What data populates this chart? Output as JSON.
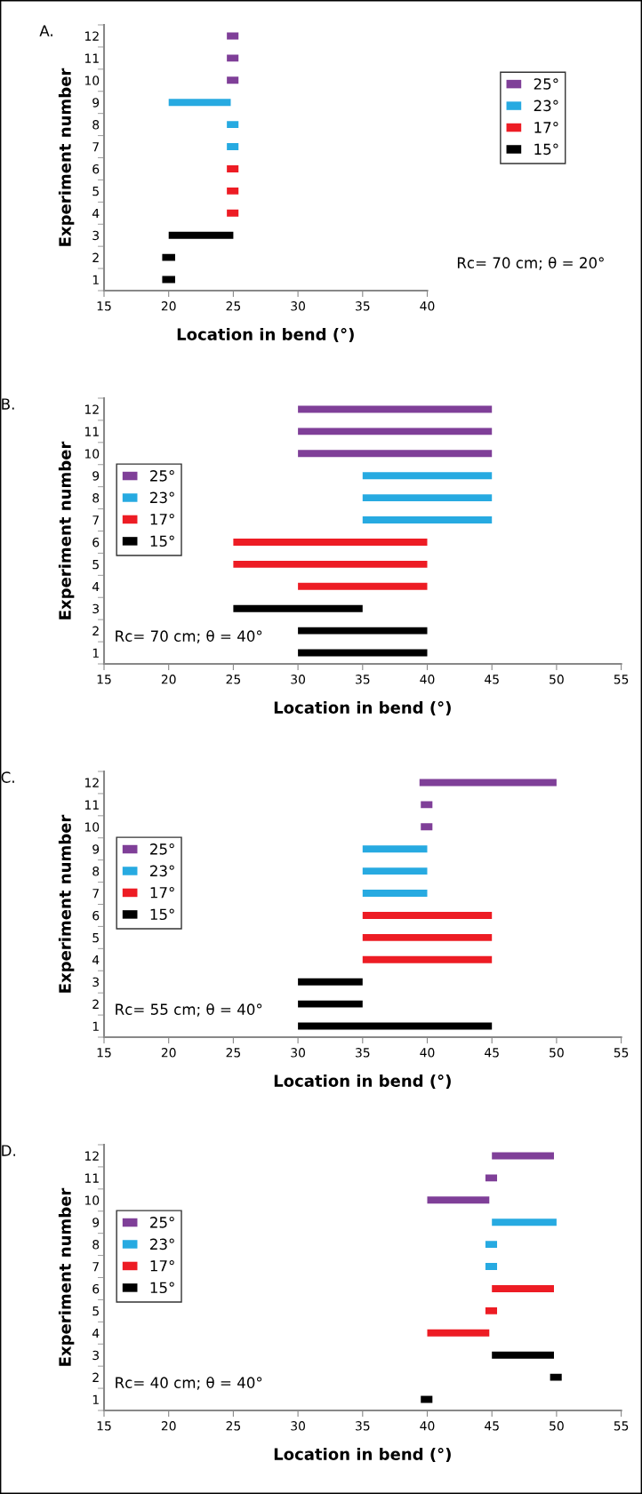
{
  "chart_data": [
    {
      "type": "bar",
      "orientation": "horizontal",
      "title": "A.",
      "xlabel": "Location in bend (°)",
      "ylabel": "Experiment number",
      "categories": [
        "12",
        "11",
        "10",
        "9",
        "8",
        "7",
        "6",
        "5",
        "4",
        "3",
        "2",
        "1"
      ],
      "xlim": [
        15,
        40
      ],
      "xticks": [
        15,
        20,
        25,
        30,
        35,
        40
      ],
      "legend": "right",
      "annotations": [
        "Rc= 70 cm; θ = 20°"
      ],
      "series": [
        {
          "name": "25°",
          "color": "#7f3f98",
          "values": [
            0.9,
            0.9,
            0.9,
            null,
            null,
            null,
            null,
            null,
            null,
            null,
            null,
            null
          ],
          "base": [
            24.5,
            24.5,
            24.5,
            null,
            null,
            null,
            null,
            null,
            null,
            null,
            null,
            null
          ]
        },
        {
          "name": "23°",
          "color": "#27aae1",
          "values": [
            null,
            null,
            null,
            4.8,
            0.9,
            0.9,
            null,
            null,
            null,
            null,
            null,
            null
          ],
          "base": [
            null,
            null,
            null,
            20,
            24.5,
            24.5,
            null,
            null,
            null,
            null,
            null,
            null
          ]
        },
        {
          "name": "17°",
          "color": "#ed1c24",
          "values": [
            null,
            null,
            null,
            null,
            null,
            null,
            0.9,
            0.9,
            0.9,
            null,
            null,
            null
          ],
          "base": [
            null,
            null,
            null,
            null,
            null,
            null,
            24.5,
            24.5,
            24.5,
            null,
            null,
            null
          ]
        },
        {
          "name": "15°",
          "color": "#000000",
          "values": [
            null,
            null,
            null,
            null,
            null,
            null,
            null,
            null,
            null,
            5,
            1,
            1
          ],
          "base": [
            null,
            null,
            null,
            null,
            null,
            null,
            null,
            null,
            null,
            20,
            19.5,
            19.5
          ]
        }
      ]
    },
    {
      "type": "bar",
      "orientation": "horizontal",
      "title": "B.",
      "xlabel": "Location in bend (°)",
      "ylabel": "Experiment number",
      "categories": [
        "12",
        "11",
        "10",
        "9",
        "8",
        "7",
        "6",
        "5",
        "4",
        "3",
        "2",
        "1"
      ],
      "xlim": [
        15,
        55
      ],
      "xticks": [
        15,
        20,
        25,
        30,
        35,
        40,
        45,
        50,
        55
      ],
      "legend": "left",
      "annotations": [
        "Rc= 70 cm; θ = 40°"
      ],
      "series": [
        {
          "name": "25°",
          "color": "#7f3f98",
          "values": [
            15,
            15,
            15,
            null,
            null,
            null,
            null,
            null,
            null,
            null,
            null,
            null
          ],
          "base": [
            30,
            30,
            30,
            null,
            null,
            null,
            null,
            null,
            null,
            null,
            null,
            null
          ]
        },
        {
          "name": "23°",
          "color": "#27aae1",
          "values": [
            null,
            null,
            null,
            10,
            10,
            10,
            null,
            null,
            null,
            null,
            null,
            null
          ],
          "base": [
            null,
            null,
            null,
            35,
            35,
            35,
            null,
            null,
            null,
            null,
            null,
            null
          ]
        },
        {
          "name": "17°",
          "color": "#ed1c24",
          "values": [
            null,
            null,
            null,
            null,
            null,
            null,
            15,
            15,
            10,
            null,
            null,
            null
          ],
          "base": [
            null,
            null,
            null,
            null,
            null,
            null,
            25,
            25,
            30,
            null,
            null,
            null
          ]
        },
        {
          "name": "15°",
          "color": "#000000",
          "values": [
            null,
            null,
            null,
            null,
            null,
            null,
            null,
            null,
            null,
            10,
            10,
            10
          ],
          "base": [
            null,
            null,
            null,
            null,
            null,
            null,
            null,
            null,
            null,
            25,
            30,
            30
          ]
        }
      ]
    },
    {
      "type": "bar",
      "orientation": "horizontal",
      "title": "C.",
      "xlabel": "Location in bend (°)",
      "ylabel": "Experiment number",
      "categories": [
        "12",
        "11",
        "10",
        "9",
        "8",
        "7",
        "6",
        "5",
        "4",
        "3",
        "2",
        "1"
      ],
      "xlim": [
        15,
        55
      ],
      "xticks": [
        15,
        20,
        25,
        30,
        35,
        40,
        45,
        50,
        55
      ],
      "legend": "left",
      "annotations": [
        "Rc= 55 cm; θ = 40°"
      ],
      "series": [
        {
          "name": "25°",
          "color": "#7f3f98",
          "values": [
            10.6,
            0.9,
            0.9,
            null,
            null,
            null,
            null,
            null,
            null,
            null,
            null,
            null
          ],
          "base": [
            39.4,
            39.5,
            39.5,
            null,
            null,
            null,
            null,
            null,
            null,
            null,
            null,
            null
          ]
        },
        {
          "name": "23°",
          "color": "#27aae1",
          "values": [
            null,
            null,
            null,
            5,
            5,
            5,
            null,
            null,
            null,
            null,
            null,
            null
          ],
          "base": [
            null,
            null,
            null,
            35,
            35,
            35,
            null,
            null,
            null,
            null,
            null,
            null
          ]
        },
        {
          "name": "17°",
          "color": "#ed1c24",
          "values": [
            null,
            null,
            null,
            null,
            null,
            null,
            10,
            10,
            10,
            null,
            null,
            null
          ],
          "base": [
            null,
            null,
            null,
            null,
            null,
            null,
            35,
            35,
            35,
            null,
            null,
            null
          ]
        },
        {
          "name": "15°",
          "color": "#000000",
          "values": [
            null,
            null,
            null,
            null,
            null,
            null,
            null,
            null,
            null,
            5,
            5,
            15
          ],
          "base": [
            null,
            null,
            null,
            null,
            null,
            null,
            null,
            null,
            null,
            30,
            30,
            30
          ]
        }
      ]
    },
    {
      "type": "bar",
      "orientation": "horizontal",
      "title": "D.",
      "xlabel": "Location in bend (°)",
      "ylabel": "Experiment number",
      "categories": [
        "12",
        "11",
        "10",
        "9",
        "8",
        "7",
        "6",
        "5",
        "4",
        "3",
        "2",
        "1"
      ],
      "xlim": [
        15,
        55
      ],
      "xticks": [
        15,
        20,
        25,
        30,
        35,
        40,
        45,
        50,
        55
      ],
      "legend": "left",
      "annotations": [
        "Rc= 40 cm; θ = 40°"
      ],
      "series": [
        {
          "name": "25°",
          "color": "#7f3f98",
          "values": [
            4.8,
            0.9,
            4.8,
            null,
            null,
            null,
            null,
            null,
            null,
            null,
            null,
            null
          ],
          "base": [
            45,
            44.5,
            40,
            null,
            null,
            null,
            null,
            null,
            null,
            null,
            null,
            null
          ]
        },
        {
          "name": "23°",
          "color": "#27aae1",
          "values": [
            null,
            null,
            null,
            5,
            0.9,
            0.9,
            null,
            null,
            null,
            null,
            null,
            null
          ],
          "base": [
            null,
            null,
            null,
            45,
            44.5,
            44.5,
            null,
            null,
            null,
            null,
            null,
            null
          ]
        },
        {
          "name": "17°",
          "color": "#ed1c24",
          "values": [
            null,
            null,
            null,
            null,
            null,
            null,
            4.8,
            0.9,
            4.8,
            null,
            null,
            null
          ],
          "base": [
            null,
            null,
            null,
            null,
            null,
            null,
            45,
            44.5,
            40,
            null,
            null,
            null
          ]
        },
        {
          "name": "15°",
          "color": "#000000",
          "values": [
            null,
            null,
            null,
            null,
            null,
            null,
            null,
            null,
            null,
            4.8,
            0.9,
            0.9
          ],
          "base": [
            null,
            null,
            null,
            null,
            null,
            null,
            null,
            null,
            null,
            45,
            49.5,
            39.5
          ]
        }
      ]
    }
  ]
}
